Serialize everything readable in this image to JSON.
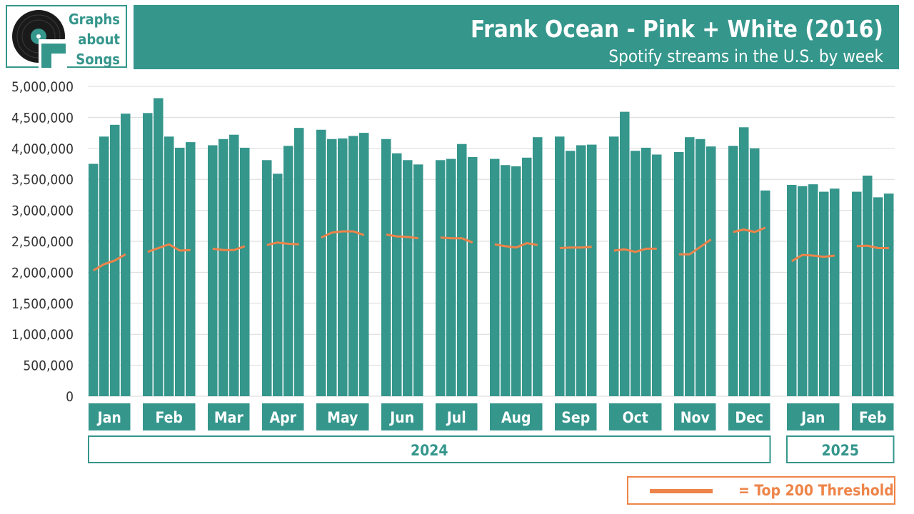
{
  "logo": {
    "line1": "Graphs",
    "line2": "about",
    "line3": "Songs"
  },
  "header": {
    "title": "Frank Ocean - Pink + White (2016)",
    "subtitle": "Spotify streams in the U.S. by week"
  },
  "legend": {
    "label": "= Top 200 Threshold"
  },
  "colors": {
    "bar": "#35968C",
    "threshold": "#EE8449",
    "grid": "#D9D9D9",
    "axis_text": "#333333"
  },
  "chart_data": {
    "type": "bar",
    "title": "Frank Ocean - Pink + White (2016)",
    "subtitle": "Spotify streams in the U.S. by week",
    "ylim": [
      0,
      5000000
    ],
    "yticks": [
      0,
      500000,
      1000000,
      1500000,
      2000000,
      2500000,
      3000000,
      3500000,
      4000000,
      4500000,
      5000000
    ],
    "ytick_labels": [
      "0",
      "500,000",
      "1,000,000",
      "1,500,000",
      "2,000,000",
      "2,500,000",
      "3,000,000",
      "3,500,000",
      "4,000,000",
      "4,500,000",
      "5,000,000"
    ],
    "grid": true,
    "legend_position": "bottom-right",
    "years": [
      {
        "label": "2024",
        "months": [
          "Jan",
          "Feb",
          "Mar",
          "Apr",
          "May",
          "Jun",
          "Jul",
          "Aug",
          "Sep",
          "Oct",
          "Nov",
          "Dec"
        ]
      },
      {
        "label": "2025",
        "months": [
          "Jan",
          "Feb"
        ]
      }
    ],
    "months": [
      {
        "label": "Jan",
        "year": "2024",
        "streams": [
          3750000,
          4190000,
          4380000,
          4560000
        ],
        "threshold": [
          2030000,
          2130000,
          2190000,
          2290000
        ]
      },
      {
        "label": "Feb",
        "year": "2024",
        "streams": [
          4570000,
          4810000,
          4190000,
          4010000,
          4100000
        ],
        "threshold": [
          2330000,
          2390000,
          2450000,
          2350000,
          2360000
        ]
      },
      {
        "label": "Mar",
        "year": "2024",
        "streams": [
          4050000,
          4150000,
          4220000,
          4010000
        ],
        "threshold": [
          2380000,
          2360000,
          2360000,
          2420000
        ]
      },
      {
        "label": "Apr",
        "year": "2024",
        "streams": [
          3810000,
          3590000,
          4040000,
          4330000
        ],
        "threshold": [
          2440000,
          2480000,
          2460000,
          2450000
        ]
      },
      {
        "label": "May",
        "year": "2024",
        "streams": [
          4300000,
          4150000,
          4160000,
          4200000,
          4250000
        ],
        "threshold": [
          2560000,
          2640000,
          2660000,
          2660000,
          2600000
        ]
      },
      {
        "label": "Jun",
        "year": "2024",
        "streams": [
          4150000,
          3920000,
          3810000,
          3740000
        ],
        "threshold": [
          2610000,
          2580000,
          2570000,
          2550000
        ]
      },
      {
        "label": "Jul",
        "year": "2024",
        "streams": [
          3810000,
          3830000,
          4070000,
          3860000
        ],
        "threshold": [
          2560000,
          2550000,
          2550000,
          2480000
        ]
      },
      {
        "label": "Aug",
        "year": "2024",
        "streams": [
          3830000,
          3730000,
          3710000,
          3850000,
          4180000
        ],
        "threshold": [
          2450000,
          2420000,
          2400000,
          2470000,
          2440000
        ]
      },
      {
        "label": "Sep",
        "year": "2024",
        "streams": [
          4190000,
          3960000,
          4050000,
          4060000
        ],
        "threshold": [
          2390000,
          2400000,
          2400000,
          2410000
        ]
      },
      {
        "label": "Oct",
        "year": "2024",
        "streams": [
          4190000,
          4590000,
          3960000,
          4010000,
          3900000
        ],
        "threshold": [
          2350000,
          2370000,
          2330000,
          2380000,
          2380000
        ]
      },
      {
        "label": "Nov",
        "year": "2024",
        "streams": [
          3940000,
          4180000,
          4150000,
          4030000
        ],
        "threshold": [
          2290000,
          2290000,
          2410000,
          2530000
        ]
      },
      {
        "label": "Dec",
        "year": "2024",
        "streams": [
          4040000,
          4340000,
          4000000,
          3320000
        ],
        "threshold": [
          2650000,
          2690000,
          2650000,
          2720000
        ]
      },
      {
        "label": "Jan",
        "year": "2025",
        "streams": [
          3410000,
          3390000,
          3420000,
          3300000,
          3350000
        ],
        "threshold": [
          2180000,
          2280000,
          2270000,
          2250000,
          2270000
        ]
      },
      {
        "label": "Feb",
        "year": "2025",
        "streams": [
          3300000,
          3560000,
          3210000,
          3270000
        ],
        "threshold": [
          2420000,
          2430000,
          2390000,
          2390000
        ]
      }
    ]
  }
}
